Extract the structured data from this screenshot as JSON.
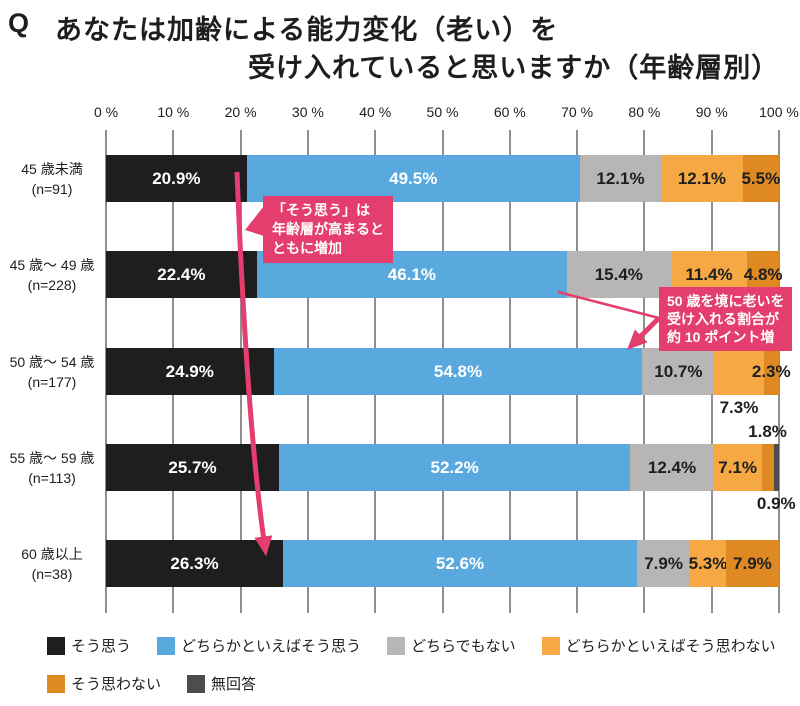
{
  "title": {
    "q": "Q",
    "line1": "あなたは加齢による能力変化（老い）を",
    "line2": "受け入れていると思いますか（年齢層別）"
  },
  "colors": {
    "accent_pink": "#e33e6d",
    "gridline": "#8f8f8f"
  },
  "annotations": [
    {
      "lines": [
        "「そう思う」は",
        "年齢層が高まると",
        "ともに増加"
      ],
      "target": "黒い「そう思う」帯の端（45歳未満→60歳以上へ矢印）"
    },
    {
      "lines": [
        "50 歳を境に老いを",
        "受け入れる割合が",
        "約 10 ポイント増"
      ],
      "target": "45〜49歳と50〜54歳の青帯の端を結ぶ矢印"
    }
  ],
  "chart_data": {
    "type": "bar",
    "stacked": true,
    "orientation": "horizontal",
    "unit": "%",
    "xlim": [
      0,
      100
    ],
    "grid": true,
    "x_ticks": [
      "0 %",
      "10 %",
      "20 %",
      "30 %",
      "40 %",
      "50 %",
      "60 %",
      "70 %",
      "80 %",
      "90 %",
      "100 %"
    ],
    "categories": [
      {
        "label": "45 歳未満",
        "n": "(n=91)"
      },
      {
        "label": "45 歳～ 49 歳",
        "n": "(n=228)"
      },
      {
        "label": "50 歳～ 54 歳",
        "n": "(n=177)"
      },
      {
        "label": "55 歳～ 59 歳",
        "n": "(n=113)"
      },
      {
        "label": "60 歳以上",
        "n": "(n=38)"
      }
    ],
    "series": [
      {
        "name": "そう思う",
        "key": "agree",
        "color": "#1e1e1e",
        "label_color": "#ffffff",
        "values": [
          20.9,
          22.4,
          24.9,
          25.7,
          26.3
        ]
      },
      {
        "name": "どちらかといえばそう思う",
        "key": "somewhat-agree",
        "color": "#5aa9de",
        "label_color": "#ffffff",
        "values": [
          49.5,
          46.1,
          54.8,
          52.2,
          52.6
        ]
      },
      {
        "name": "どちらでもない",
        "key": "neutral",
        "color": "#b8b6b4",
        "label_color": "#1e1e1e",
        "values": [
          12.1,
          15.4,
          10.7,
          12.4,
          7.9
        ]
      },
      {
        "name": "どちらかといえばそう思わない",
        "key": "somewhat-disagree",
        "color": "#f5a843",
        "label_color": "#1e1e1e",
        "values": [
          12.1,
          11.4,
          7.3,
          7.1,
          5.3
        ]
      },
      {
        "name": "そう思わない",
        "key": "disagree",
        "color": "#de8922",
        "label_color": "#1e1e1e",
        "values": [
          5.5,
          4.8,
          2.3,
          1.8,
          7.9
        ]
      },
      {
        "name": "無回答",
        "key": "no-answer",
        "color": "#4d4d4d",
        "label_color": "#1e1e1e",
        "values": [
          0,
          0,
          0,
          0.9,
          0
        ]
      }
    ],
    "label_positions": [
      [
        "mid",
        "mid",
        "mid",
        "mid",
        "mid",
        "none"
      ],
      [
        "mid",
        "mid",
        "mid",
        "mid",
        "mid",
        "none"
      ],
      [
        "mid",
        "mid",
        "mid",
        "below",
        "mid",
        "none"
      ],
      [
        "mid",
        "mid",
        "mid",
        "mid",
        "above",
        "below"
      ],
      [
        "mid",
        "mid",
        "mid",
        "mid",
        "mid",
        "none"
      ]
    ],
    "legend_rows": [
      [
        0,
        1,
        2,
        3
      ],
      [
        4,
        5
      ]
    ],
    "legend_position": "bottom"
  }
}
